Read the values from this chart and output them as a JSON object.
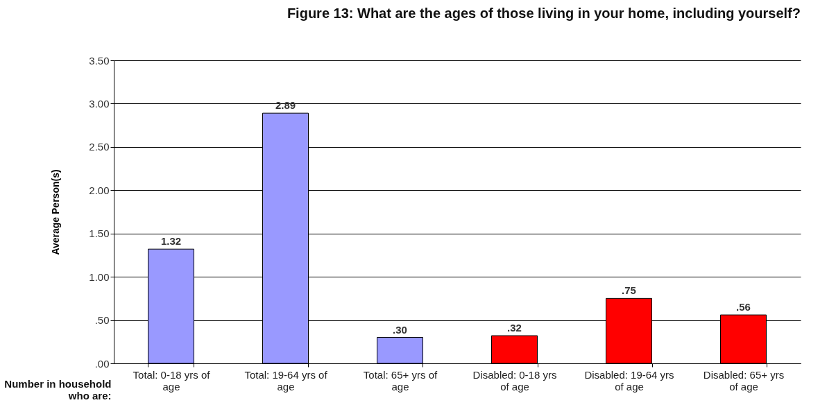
{
  "chart_data": {
    "type": "bar",
    "title": "Figure 13:  What are the ages of those living in your home, including yourself?",
    "xlabel": "Number in household who are:",
    "ylabel": "Average Person(s)",
    "categories": [
      "Total: 0-18 yrs of age",
      "Total: 19-64 yrs of age",
      "Total: 65+ yrs of age",
      "Disabled: 0-18 yrs of age",
      "Disabled: 19-64 yrs of age",
      "Disabled: 65+ yrs of age"
    ],
    "values": [
      1.32,
      2.89,
      0.3,
      0.32,
      0.75,
      0.56
    ],
    "colors": [
      "#9999ff",
      "#9999ff",
      "#9999ff",
      "#ff0000",
      "#ff0000",
      "#ff0000"
    ],
    "value_labels": [
      "1.32",
      "2.89",
      ".30",
      ".32",
      ".75",
      ".56"
    ],
    "ylim": [
      0,
      3.5
    ],
    "yticks": [
      {
        "value": 0,
        "label": ".00"
      },
      {
        "value": 0.5,
        "label": ".50"
      },
      {
        "value": 1,
        "label": "1.00"
      },
      {
        "value": 1.5,
        "label": "1.50"
      },
      {
        "value": 2,
        "label": "2.00"
      },
      {
        "value": 2.5,
        "label": "2.50"
      },
      {
        "value": 3,
        "label": "3.00"
      },
      {
        "value": 3.5,
        "label": "3.50"
      }
    ],
    "grid": "y"
  }
}
